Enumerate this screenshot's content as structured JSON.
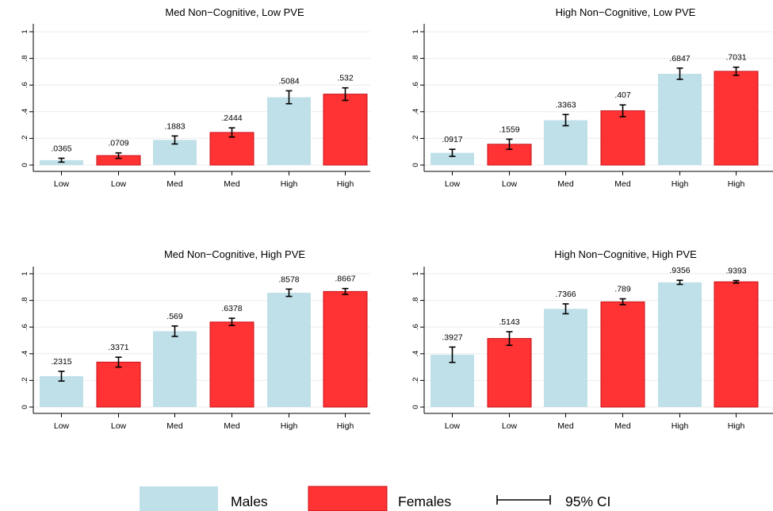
{
  "colors": {
    "male": "#bfe0e8",
    "female": "#ff3333",
    "female_edge": "#c8101a",
    "grid": "#ececec",
    "axis": "#000000"
  },
  "legend": {
    "position": "bottom",
    "items": [
      "Males",
      "Females",
      "95% CI"
    ]
  },
  "chart_data": [
    {
      "type": "bar",
      "title": "Med Non−Cognitive, Low PVE",
      "categories": [
        "Low",
        "Low",
        "Med",
        "Med",
        "High",
        "High"
      ],
      "groups": [
        "Males",
        "Females",
        "Males",
        "Females",
        "Males",
        "Females"
      ],
      "values": [
        0.0365,
        0.0709,
        0.1883,
        0.2444,
        0.5084,
        0.532
      ],
      "value_labels": [
        ".0365",
        ".0709",
        ".1883",
        ".2444",
        ".5084",
        ".532"
      ],
      "ci_low": [
        0.022,
        0.05,
        0.158,
        0.21,
        0.46,
        0.485
      ],
      "ci_high": [
        0.051,
        0.091,
        0.218,
        0.279,
        0.557,
        0.579
      ],
      "ylim": [
        0,
        1.05
      ],
      "yticks": [
        0,
        0.2,
        0.4,
        0.6,
        0.8,
        1
      ],
      "ytick_labels": [
        "0",
        ".2",
        ".4",
        ".6",
        ".8",
        "1"
      ],
      "grid": true
    },
    {
      "type": "bar",
      "title": "High Non−Cognitive, Low PVE",
      "categories": [
        "Low",
        "Low",
        "Med",
        "Med",
        "High",
        "High"
      ],
      "groups": [
        "Males",
        "Females",
        "Males",
        "Females",
        "Males",
        "Females"
      ],
      "values": [
        0.0917,
        0.1559,
        0.3363,
        0.407,
        0.6847,
        0.7031
      ],
      "value_labels": [
        ".0917",
        ".1559",
        ".3363",
        ".407",
        ".6847",
        ".7031"
      ],
      "ci_low": [
        0.065,
        0.118,
        0.295,
        0.363,
        0.643,
        0.673
      ],
      "ci_high": [
        0.118,
        0.194,
        0.379,
        0.451,
        0.727,
        0.734
      ],
      "ylim": [
        0,
        1.05
      ],
      "yticks": [
        0,
        0.2,
        0.4,
        0.6,
        0.8,
        1
      ],
      "ytick_labels": [
        "0",
        ".2",
        ".4",
        ".6",
        ".8",
        "1"
      ],
      "grid": true
    },
    {
      "type": "bar",
      "title": "Med Non−Cognitive, High PVE",
      "categories": [
        "Low",
        "Low",
        "Med",
        "Med",
        "High",
        "High"
      ],
      "groups": [
        "Males",
        "Females",
        "Males",
        "Females",
        "Males",
        "Females"
      ],
      "values": [
        0.2315,
        0.3371,
        0.569,
        0.6378,
        0.8578,
        0.8667
      ],
      "value_labels": [
        ".2315",
        ".3371",
        ".569",
        ".6378",
        ".8578",
        ".8667"
      ],
      "ci_low": [
        0.195,
        0.3,
        0.53,
        0.612,
        0.83,
        0.845
      ],
      "ci_high": [
        0.268,
        0.374,
        0.608,
        0.666,
        0.885,
        0.889
      ],
      "ylim": [
        0,
        1.05
      ],
      "yticks": [
        0,
        0.2,
        0.4,
        0.6,
        0.8,
        1
      ],
      "ytick_labels": [
        "0",
        ".2",
        ".4",
        ".6",
        ".8",
        "1"
      ],
      "grid": true
    },
    {
      "type": "bar",
      "title": "High Non−Cognitive, High PVE",
      "categories": [
        "Low",
        "Low",
        "Med",
        "Med",
        "High",
        "High"
      ],
      "groups": [
        "Males",
        "Females",
        "Males",
        "Females",
        "Males",
        "Females"
      ],
      "values": [
        0.3927,
        0.5143,
        0.7366,
        0.789,
        0.9356,
        0.9393
      ],
      "value_labels": [
        ".3927",
        ".5143",
        ".7366",
        ".789",
        ".9356",
        ".9393"
      ],
      "ci_low": [
        0.335,
        0.463,
        0.7,
        0.768,
        0.92,
        0.93
      ],
      "ci_high": [
        0.45,
        0.565,
        0.774,
        0.812,
        0.951,
        0.949
      ],
      "ylim": [
        0,
        1.05
      ],
      "yticks": [
        0,
        0.2,
        0.4,
        0.6,
        0.8,
        1
      ],
      "ytick_labels": [
        "0",
        ".2",
        ".4",
        ".6",
        ".8",
        "1"
      ],
      "grid": true
    }
  ]
}
